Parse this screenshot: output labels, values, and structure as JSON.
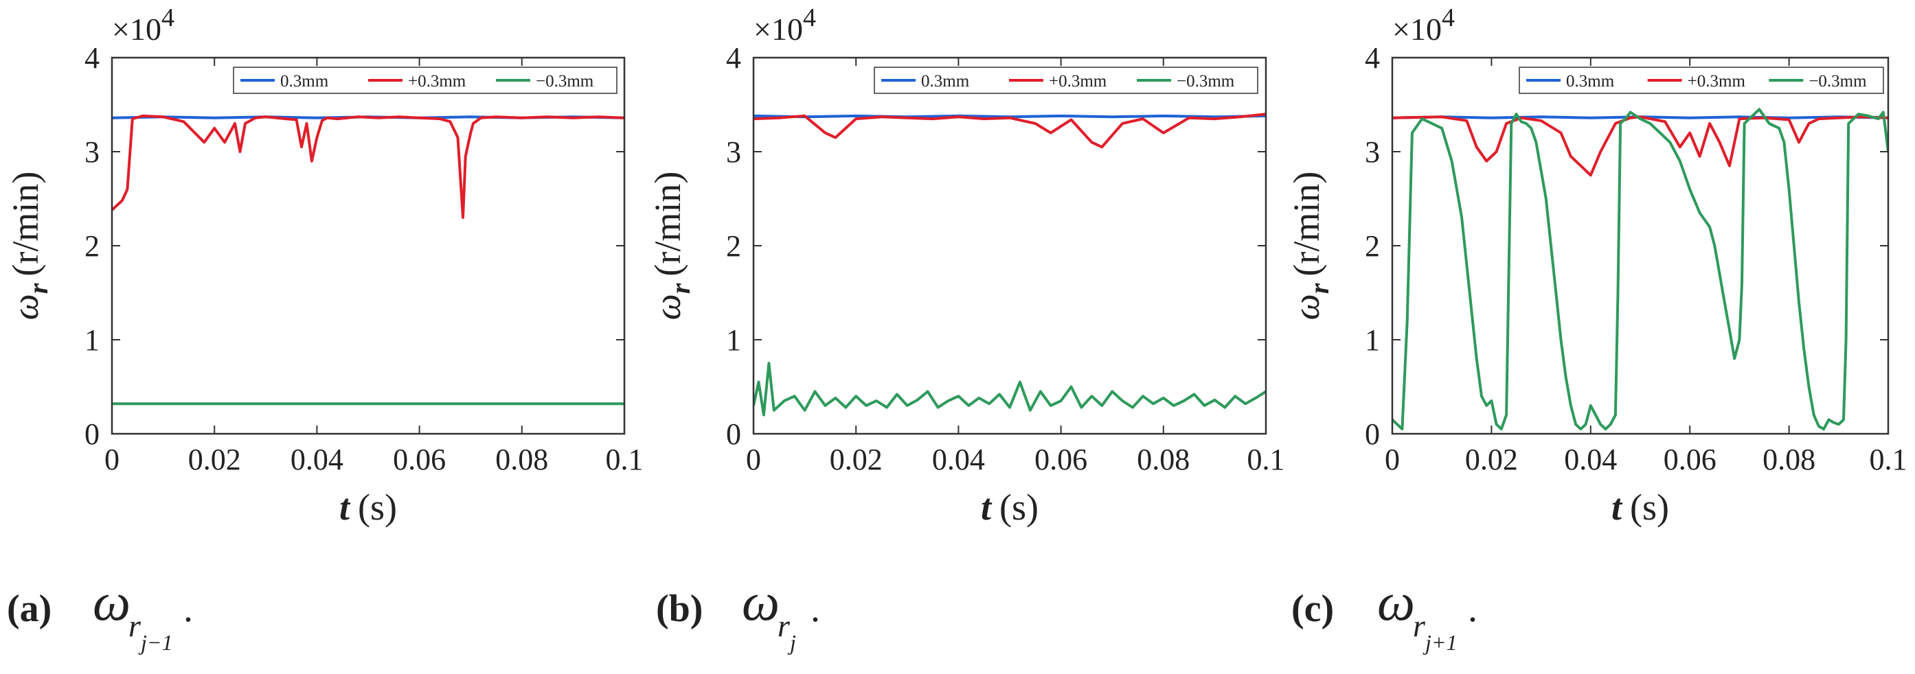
{
  "figure": {
    "legend": [
      "0.3mm",
      "+0.3mm",
      "−0.3mm"
    ],
    "series_colors": [
      "#1f63d6",
      "#e01e2a",
      "#2e9a5c"
    ]
  },
  "chart_data": [
    {
      "type": "line",
      "panel": "(a)",
      "caption": "(a)",
      "caption_symbol": "ω",
      "caption_subscript": "r",
      "caption_subsubscript": "j−1",
      "caption_period": ".",
      "ylabel_symbol": "ω",
      "ylabel_sub": "r",
      "ylabel_unit": "(r/min)",
      "xlabel_symbol": "t",
      "xlabel_unit": "(s)",
      "exponent_label": "×10",
      "exponent_power": "4",
      "xlim": [
        0,
        0.1
      ],
      "ylim": [
        0,
        4
      ],
      "xticks": [
        0,
        0.02,
        0.04,
        0.06,
        0.08,
        0.1
      ],
      "yticks": [
        0,
        1,
        2,
        3,
        4
      ],
      "xtick_labels": [
        "0",
        "0.02",
        "0.04",
        "0.06",
        "0.08",
        "0.1"
      ],
      "ytick_labels": [
        "0",
        "1",
        "2",
        "3",
        "4"
      ],
      "series": [
        {
          "name": "0.3mm",
          "color": "#1f63d6",
          "x": [
            0,
            0.01,
            0.02,
            0.03,
            0.04,
            0.05,
            0.06,
            0.07,
            0.08,
            0.09,
            0.1
          ],
          "y": [
            3.36,
            3.37,
            3.36,
            3.37,
            3.36,
            3.37,
            3.36,
            3.37,
            3.36,
            3.37,
            3.36
          ]
        },
        {
          "name": "+0.3mm",
          "color": "#e01e2a",
          "x": [
            0,
            0.002,
            0.003,
            0.004,
            0.006,
            0.01,
            0.014,
            0.018,
            0.02,
            0.022,
            0.024,
            0.025,
            0.026,
            0.028,
            0.03,
            0.034,
            0.036,
            0.037,
            0.038,
            0.039,
            0.04,
            0.041,
            0.042,
            0.044,
            0.048,
            0.052,
            0.056,
            0.06,
            0.064,
            0.066,
            0.0675,
            0.0685,
            0.069,
            0.07,
            0.0705,
            0.072,
            0.075,
            0.08,
            0.085,
            0.09,
            0.095,
            0.1
          ],
          "y": [
            2.38,
            2.48,
            2.6,
            3.35,
            3.38,
            3.37,
            3.32,
            3.1,
            3.25,
            3.1,
            3.3,
            3.0,
            3.3,
            3.36,
            3.37,
            3.35,
            3.34,
            3.05,
            3.3,
            2.9,
            3.15,
            3.33,
            3.36,
            3.35,
            3.37,
            3.36,
            3.37,
            3.36,
            3.35,
            3.32,
            3.15,
            2.3,
            2.95,
            3.2,
            3.3,
            3.36,
            3.37,
            3.36,
            3.37,
            3.36,
            3.37,
            3.36
          ]
        },
        {
          "name": "−0.3mm",
          "color": "#2e9a5c",
          "x": [
            0,
            0.02,
            0.04,
            0.06,
            0.08,
            0.1
          ],
          "y": [
            0.32,
            0.32,
            0.32,
            0.32,
            0.32,
            0.32
          ]
        }
      ]
    },
    {
      "type": "line",
      "panel": "(b)",
      "caption": "(b)",
      "caption_symbol": "ω",
      "caption_subscript": "r",
      "caption_subsubscript": "j",
      "caption_period": ".",
      "ylabel_symbol": "ω",
      "ylabel_sub": "r",
      "ylabel_unit": "(r/min)",
      "xlabel_symbol": "t",
      "xlabel_unit": "(s)",
      "exponent_label": "×10",
      "exponent_power": "4",
      "xlim": [
        0,
        0.1
      ],
      "ylim": [
        0,
        4
      ],
      "xticks": [
        0,
        0.02,
        0.04,
        0.06,
        0.08,
        0.1
      ],
      "yticks": [
        0,
        1,
        2,
        3,
        4
      ],
      "xtick_labels": [
        "0",
        "0.02",
        "0.04",
        "0.06",
        "0.08",
        "0.1"
      ],
      "ytick_labels": [
        "0",
        "1",
        "2",
        "3",
        "4"
      ],
      "series": [
        {
          "name": "0.3mm",
          "color": "#1f63d6",
          "x": [
            0,
            0.01,
            0.02,
            0.03,
            0.04,
            0.05,
            0.06,
            0.07,
            0.08,
            0.09,
            0.1
          ],
          "y": [
            3.38,
            3.37,
            3.38,
            3.37,
            3.38,
            3.37,
            3.38,
            3.37,
            3.38,
            3.37,
            3.38
          ]
        },
        {
          "name": "+0.3mm",
          "color": "#e01e2a",
          "x": [
            0,
            0.005,
            0.01,
            0.014,
            0.016,
            0.02,
            0.025,
            0.03,
            0.035,
            0.04,
            0.045,
            0.05,
            0.055,
            0.058,
            0.062,
            0.066,
            0.068,
            0.072,
            0.076,
            0.08,
            0.085,
            0.09,
            0.095,
            0.1
          ],
          "y": [
            3.35,
            3.36,
            3.38,
            3.2,
            3.15,
            3.35,
            3.37,
            3.36,
            3.35,
            3.37,
            3.35,
            3.36,
            3.3,
            3.2,
            3.34,
            3.1,
            3.05,
            3.3,
            3.35,
            3.2,
            3.36,
            3.35,
            3.37,
            3.4
          ]
        },
        {
          "name": "−0.3mm",
          "color": "#2e9a5c",
          "x": [
            0,
            0.001,
            0.002,
            0.003,
            0.004,
            0.006,
            0.008,
            0.01,
            0.012,
            0.014,
            0.016,
            0.018,
            0.02,
            0.022,
            0.024,
            0.026,
            0.028,
            0.03,
            0.032,
            0.034,
            0.036,
            0.038,
            0.04,
            0.042,
            0.044,
            0.046,
            0.048,
            0.05,
            0.052,
            0.054,
            0.056,
            0.058,
            0.06,
            0.062,
            0.064,
            0.066,
            0.068,
            0.07,
            0.072,
            0.074,
            0.076,
            0.078,
            0.08,
            0.082,
            0.084,
            0.086,
            0.088,
            0.09,
            0.092,
            0.094,
            0.096,
            0.098,
            0.1
          ],
          "y": [
            0.3,
            0.55,
            0.2,
            0.75,
            0.25,
            0.35,
            0.4,
            0.25,
            0.45,
            0.3,
            0.38,
            0.28,
            0.4,
            0.3,
            0.35,
            0.28,
            0.42,
            0.3,
            0.36,
            0.45,
            0.28,
            0.35,
            0.4,
            0.3,
            0.38,
            0.32,
            0.42,
            0.28,
            0.55,
            0.25,
            0.45,
            0.3,
            0.35,
            0.5,
            0.28,
            0.4,
            0.3,
            0.45,
            0.35,
            0.28,
            0.4,
            0.32,
            0.38,
            0.3,
            0.35,
            0.42,
            0.3,
            0.36,
            0.28,
            0.4,
            0.32,
            0.38,
            0.45
          ]
        }
      ]
    },
    {
      "type": "line",
      "panel": "(c)",
      "caption": "(c)",
      "caption_symbol": "ω",
      "caption_subscript": "r",
      "caption_subsubscript": "j+1",
      "caption_period": ".",
      "ylabel_symbol": "ω",
      "ylabel_sub": "r",
      "ylabel_unit": "(r/min)",
      "xlabel_symbol": "t",
      "xlabel_unit": "(s)",
      "exponent_label": "×10",
      "exponent_power": "4",
      "xlim": [
        0,
        0.1
      ],
      "ylim": [
        0,
        4
      ],
      "xticks": [
        0,
        0.02,
        0.04,
        0.06,
        0.08,
        0.1
      ],
      "yticks": [
        0,
        1,
        2,
        3,
        4
      ],
      "xtick_labels": [
        "0",
        "0.02",
        "0.04",
        "0.06",
        "0.08",
        "0.1"
      ],
      "ytick_labels": [
        "0",
        "1",
        "2",
        "3",
        "4"
      ],
      "series": [
        {
          "name": "0.3mm",
          "color": "#1f63d6",
          "x": [
            0,
            0.01,
            0.02,
            0.03,
            0.04,
            0.05,
            0.06,
            0.07,
            0.08,
            0.09,
            0.1
          ],
          "y": [
            3.36,
            3.37,
            3.36,
            3.37,
            3.36,
            3.37,
            3.36,
            3.37,
            3.36,
            3.37,
            3.36
          ]
        },
        {
          "name": "+0.3mm",
          "color": "#e01e2a",
          "x": [
            0,
            0.01,
            0.015,
            0.017,
            0.019,
            0.021,
            0.023,
            0.026,
            0.03,
            0.034,
            0.036,
            0.038,
            0.04,
            0.042,
            0.045,
            0.048,
            0.05,
            0.055,
            0.058,
            0.06,
            0.062,
            0.064,
            0.066,
            0.068,
            0.07,
            0.075,
            0.08,
            0.082,
            0.084,
            0.086,
            0.09,
            0.095,
            0.1
          ],
          "y": [
            3.36,
            3.37,
            3.33,
            3.05,
            2.9,
            3.0,
            3.3,
            3.36,
            3.33,
            3.2,
            2.95,
            2.85,
            2.75,
            3.0,
            3.3,
            3.36,
            3.37,
            3.32,
            3.05,
            3.2,
            2.95,
            3.3,
            3.1,
            2.85,
            3.35,
            3.36,
            3.34,
            3.1,
            3.3,
            3.35,
            3.36,
            3.37,
            3.36
          ]
        },
        {
          "name": "−0.3mm",
          "color": "#2e9a5c",
          "x": [
            0,
            0.001,
            0.002,
            0.003,
            0.004,
            0.006,
            0.008,
            0.01,
            0.012,
            0.013,
            0.014,
            0.015,
            0.016,
            0.017,
            0.018,
            0.019,
            0.02,
            0.021,
            0.022,
            0.023,
            0.024,
            0.025,
            0.026,
            0.027,
            0.028,
            0.029,
            0.03,
            0.031,
            0.032,
            0.033,
            0.034,
            0.035,
            0.036,
            0.037,
            0.038,
            0.039,
            0.04,
            0.041,
            0.042,
            0.043,
            0.044,
            0.045,
            0.0455,
            0.046,
            0.047,
            0.048,
            0.05,
            0.052,
            0.054,
            0.056,
            0.058,
            0.06,
            0.062,
            0.064,
            0.065,
            0.066,
            0.067,
            0.068,
            0.069,
            0.07,
            0.0705,
            0.071,
            0.072,
            0.074,
            0.076,
            0.078,
            0.079,
            0.08,
            0.081,
            0.082,
            0.083,
            0.084,
            0.085,
            0.086,
            0.087,
            0.088,
            0.089,
            0.09,
            0.091,
            0.0915,
            0.092,
            0.094,
            0.096,
            0.098,
            0.099,
            0.1
          ],
          "y": [
            0.15,
            0.1,
            0.05,
            1.2,
            3.2,
            3.35,
            3.3,
            3.25,
            2.9,
            2.6,
            2.3,
            1.8,
            1.3,
            0.8,
            0.4,
            0.3,
            0.35,
            0.1,
            0.05,
            0.2,
            3.3,
            3.4,
            3.32,
            3.3,
            3.25,
            3.1,
            2.8,
            2.5,
            2.0,
            1.5,
            1.0,
            0.6,
            0.3,
            0.1,
            0.05,
            0.1,
            0.3,
            0.2,
            0.1,
            0.05,
            0.1,
            0.2,
            1.5,
            3.3,
            3.35,
            3.42,
            3.35,
            3.3,
            3.2,
            3.1,
            2.9,
            2.6,
            2.35,
            2.2,
            2.0,
            1.7,
            1.4,
            1.1,
            0.8,
            1.0,
            1.6,
            3.3,
            3.35,
            3.45,
            3.3,
            3.25,
            3.1,
            2.6,
            2.0,
            1.4,
            0.9,
            0.5,
            0.2,
            0.08,
            0.05,
            0.15,
            0.12,
            0.1,
            0.15,
            1.0,
            3.3,
            3.4,
            3.38,
            3.35,
            3.42,
            3.0
          ]
        }
      ]
    }
  ]
}
